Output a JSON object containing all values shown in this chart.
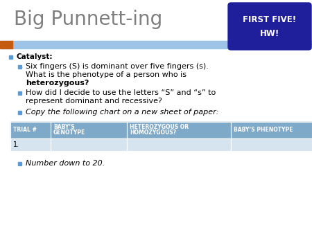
{
  "title": "Big Punnett-ing",
  "title_color": "#7F7F7F",
  "title_fontsize": 20,
  "bg_color": "#FFFFFF",
  "header_bar_color": "#9DC3E6",
  "header_bar_left_color": "#C55A11",
  "badge_bg": "#1F1F9C",
  "badge_text1": "FIRST FIVE!",
  "badge_text2": "HW!",
  "badge_text_color": "#FFFFFF",
  "bullet_color": "#5B9BD5",
  "bullet1_label": "Catalyst:",
  "sub_bullet1_line1": "Six fingers (S) is dominant over five fingers (s).",
  "sub_bullet1_line2": "What is the phenotype of a person who is",
  "sub_bullet1_bold": "heterozygous",
  "sub_bullet1_end": "?",
  "sub_bullet2_line1": "How did I decide to use the letters “S” and “s” to",
  "sub_bullet2_line2": "represent dominant and recessive?",
  "sub_bullet3": "Copy the following chart on a new sheet of paper:",
  "table_header_color": "#7FA9C8",
  "table_header_text_color": "#FFFFFF",
  "table_row_color": "#D6E4F0",
  "table_col1": "TRIAL #",
  "table_col2": "BABY’S\nGENOTYPE",
  "table_col3": "HETEROZYGOUS OR\nHOMOZYGOUS?",
  "table_col4": "BABY’S PHENOTYPE",
  "table_row1_col1": "1.",
  "last_bullet": "Number down to 20."
}
